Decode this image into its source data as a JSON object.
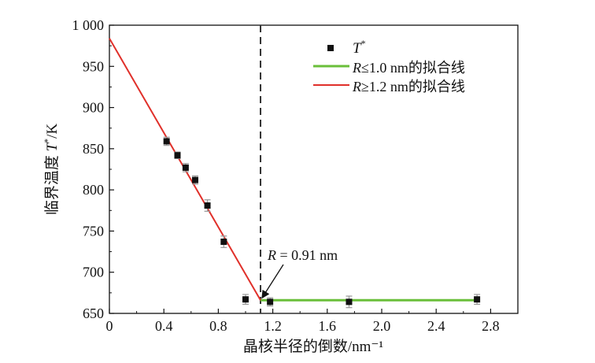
{
  "chart_data": {
    "type": "scatter",
    "xlabel": "晶核半径的倒数/nm⁻¹",
    "ylabel_main": "临界温度 ",
    "ylabel_var": "T",
    "ylabel_sup": "*",
    "ylabel_unit": "/K",
    "xlim": [
      0,
      3.0
    ],
    "ylim": [
      650,
      1000
    ],
    "xticks": [
      0,
      0.4,
      0.8,
      1.2,
      1.6,
      2.0,
      2.4,
      2.8
    ],
    "xtick_labels": [
      "0",
      "0.4",
      "0.8",
      "1.2",
      "1.6",
      "2.0",
      "2.4",
      "2.8"
    ],
    "yticks": [
      650,
      700,
      750,
      800,
      850,
      900,
      950,
      1000
    ],
    "ytick_labels": [
      "650",
      "700",
      "750",
      "800",
      "850",
      "900",
      "950",
      "1 000"
    ],
    "series": [
      {
        "name": "T*",
        "kind": "points",
        "color": "#111111",
        "errorbar_color": "#9a9a9a",
        "points": [
          {
            "x": 0.42,
            "y": 859,
            "err": 5
          },
          {
            "x": 0.5,
            "y": 842,
            "err": 4
          },
          {
            "x": 0.56,
            "y": 827,
            "err": 5
          },
          {
            "x": 0.63,
            "y": 812,
            "err": 5
          },
          {
            "x": 0.72,
            "y": 781,
            "err": 7
          },
          {
            "x": 0.84,
            "y": 737,
            "err": 7
          },
          {
            "x": 1.0,
            "y": 667,
            "err": 6
          },
          {
            "x": 1.18,
            "y": 664,
            "err": 5
          },
          {
            "x": 1.76,
            "y": 664,
            "err": 7
          },
          {
            "x": 2.7,
            "y": 667,
            "err": 6
          }
        ]
      },
      {
        "name_var": "R",
        "name_rest": "≤1.0 nm的拟合线",
        "kind": "line",
        "color": "#6abf3a",
        "x": [
          1.11,
          2.7
        ],
        "y": [
          666,
          666
        ]
      },
      {
        "name_var": "R",
        "name_rest": "≥1.2 nm的拟合线",
        "kind": "line",
        "color": "#e0302a",
        "x": [
          0,
          1.11
        ],
        "y": [
          984,
          666
        ]
      }
    ],
    "vline": {
      "x": 1.11,
      "style": "dashed",
      "color": "#333333"
    },
    "annotation": {
      "var": "R",
      "rest": " = 0.91 nm",
      "arrow_to": {
        "x": 1.11,
        "y": 666
      }
    },
    "legend_position": "top-right",
    "grid": false
  }
}
